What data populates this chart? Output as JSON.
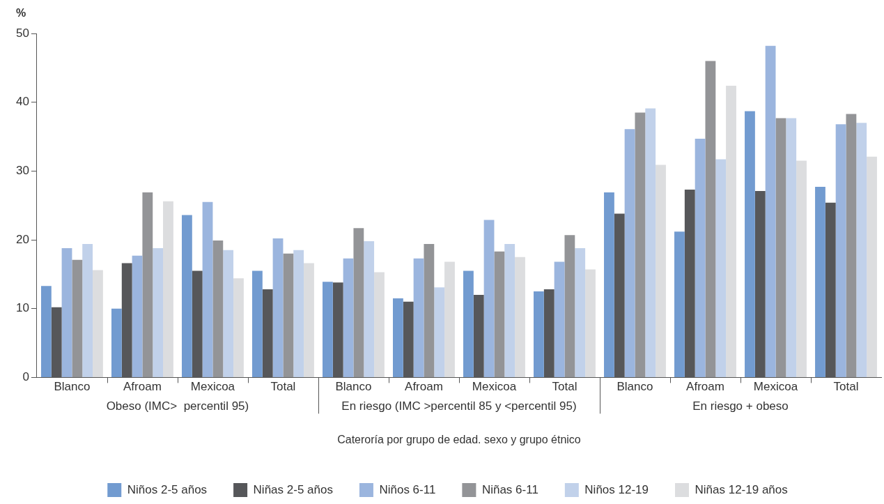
{
  "chart_data": {
    "type": "bar",
    "ylabel": "%",
    "xlabel": "Caterоría por grupo de edad. sexo y grupo étnico",
    "categories": [
      "Blanco",
      "Afroam",
      "Mexicoa",
      "Total",
      "Blanco",
      "Afroam",
      "Mexicoa",
      "Total",
      "Blanco",
      "Afroam",
      "Mexicoa",
      "Total"
    ],
    "annotations": [
      "Obeso (IMC>  percentil 95)",
      "En riesgo (IMC >percentil 85 y <percentil 95)",
      "En riesgo + obeso"
    ],
    "series": [
      {
        "name": "Niños 2-5 años",
        "color": "#729bd0",
        "values": [
          13.3,
          10.0,
          23.6,
          15.5,
          13.9,
          11.5,
          15.5,
          12.5,
          26.9,
          21.2,
          38.7,
          27.7
        ]
      },
      {
        "name": "Niñas 2-5 años",
        "color": "#56575a",
        "values": [
          10.2,
          16.6,
          15.5,
          12.8,
          13.8,
          11.0,
          12.0,
          12.8,
          23.8,
          27.3,
          27.1,
          25.4
        ]
      },
      {
        "name": "Niños 6-11",
        "color": "#9bb5de",
        "values": [
          18.8,
          17.7,
          25.5,
          20.2,
          17.3,
          17.3,
          22.9,
          16.8,
          36.1,
          34.7,
          48.2,
          36.8
        ]
      },
      {
        "name": "Niñas 6-11",
        "color": "#939497",
        "values": [
          17.1,
          26.9,
          19.9,
          18.0,
          21.7,
          19.4,
          18.3,
          20.7,
          38.5,
          46.0,
          37.7,
          38.3
        ]
      },
      {
        "name": "Niños 12-19",
        "color": "#c1d1ea",
        "values": [
          19.4,
          18.8,
          18.5,
          18.5,
          19.8,
          13.1,
          19.4,
          18.8,
          39.1,
          31.7,
          37.7,
          37.0
        ]
      },
      {
        "name": "Niñas 12-19 años",
        "color": "#dcdddf",
        "values": [
          15.6,
          25.6,
          14.4,
          16.6,
          15.3,
          16.8,
          17.5,
          15.7,
          30.9,
          42.4,
          31.5,
          32.1
        ]
      }
    ],
    "ylim": [
      0,
      50
    ],
    "yticks": [
      0,
      10,
      20,
      30,
      40,
      50
    ],
    "grid": false,
    "legend": "bottom"
  }
}
